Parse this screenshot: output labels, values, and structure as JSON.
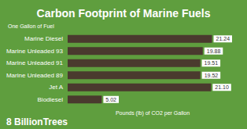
{
  "chart_data": {
    "type": "bar",
    "title": "Carbon Footprint of Marine Fuels",
    "orientation": "horizontal",
    "annotations": [
      "One Gallon of Fuel",
      "8 BillionTrees"
    ],
    "x_label": "Pounds (lb) of CO2 per Gallon",
    "categories": [
      "Marine Diesel",
      "Marine Unleaded 93",
      "Marine Unleaded 91",
      "Marine Unleaded 89",
      "Jet A",
      "Biodiesel"
    ],
    "values": [
      21.24,
      19.88,
      19.51,
      19.52,
      21.1,
      5.02
    ],
    "value_labels": [
      "21.24",
      "19.88",
      "19.51",
      "19.52",
      "21.10",
      "5.02"
    ],
    "color": "#4a3a2e",
    "xlim": [
      0,
      25
    ],
    "xticks": [
      0,
      25
    ],
    "grid": false,
    "data_labels": true,
    "tick_labels": "y"
  }
}
